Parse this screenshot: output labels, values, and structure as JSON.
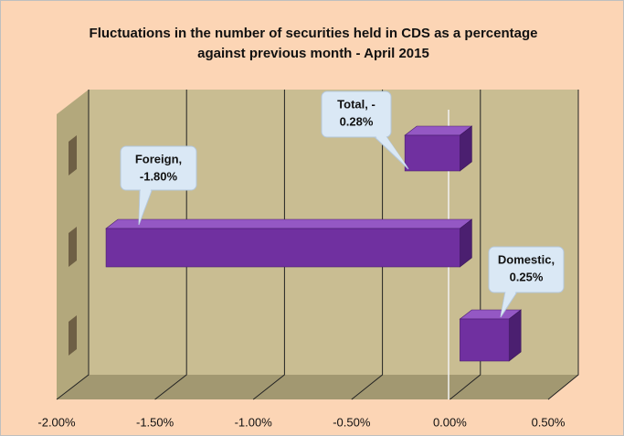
{
  "chart_data": {
    "type": "bar3d-horizontal",
    "title": [
      "Fluctuations in the number of securities held in CDS as a percentage",
      "against previous month - April 2015"
    ],
    "values": [
      0.25,
      -1.8,
      -0.28
    ],
    "value_labels": [
      [
        "Domestic,",
        "0.25%"
      ],
      [
        "Foreign,",
        "-1.80%"
      ],
      [
        "Total, -",
        "0.28%"
      ]
    ],
    "color": "#7030a0",
    "xlim": [
      -2,
      0.5
    ],
    "xticks": [
      {
        "value": -2,
        "label": "-2.00%"
      },
      {
        "value": -1.5,
        "label": "-1.50%"
      },
      {
        "value": -1,
        "label": "-1.00%"
      },
      {
        "value": -0.5,
        "label": "-0.50%"
      },
      {
        "value": 0,
        "label": "0.00%"
      },
      {
        "value": 0.5,
        "label": "0.50%"
      }
    ],
    "grid": true
  }
}
